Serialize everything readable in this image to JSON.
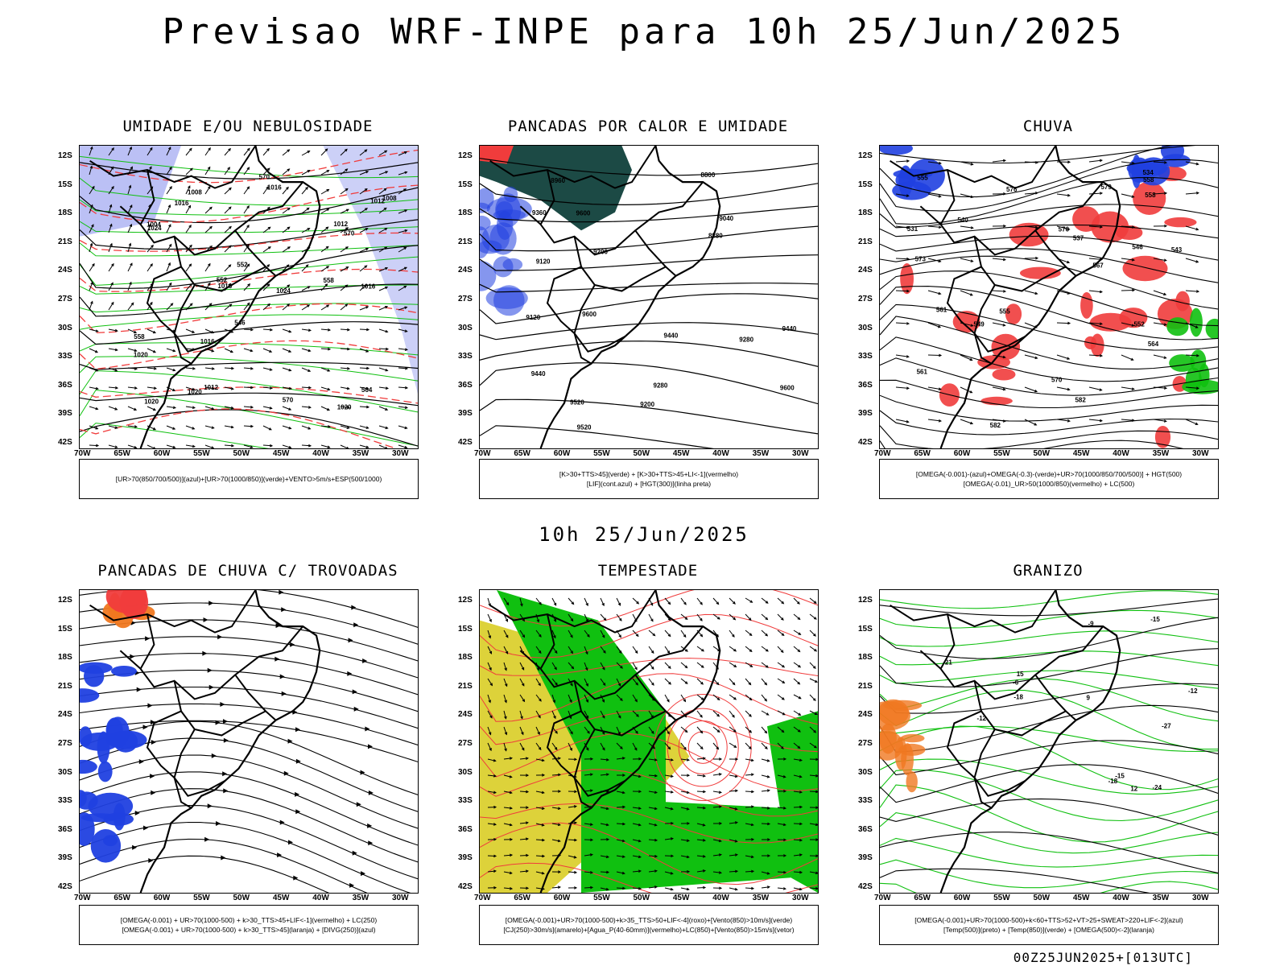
{
  "header": {
    "title": "Previsao WRF-INPE  para 10h 25/Jun/2025"
  },
  "mid_label": "10h 25/Jun/2025",
  "footer": "00Z25JUN2025+[013UTC]",
  "axes": {
    "lat_labels": [
      "12S",
      "15S",
      "18S",
      "21S",
      "24S",
      "27S",
      "30S",
      "33S",
      "36S",
      "39S",
      "42S"
    ],
    "lon_labels": [
      "70W",
      "65W",
      "60W",
      "55W",
      "50W",
      "45W",
      "40W",
      "35W",
      "30W"
    ]
  },
  "colors": {
    "humidity_blue": "#aab0f2",
    "rain_red": "#f03c3c",
    "green_field": "#10c010",
    "dark_teal": "#1c4a45",
    "yellow": "#ddd23a",
    "orange": "#f07820",
    "blue": "#2040e0"
  },
  "panels": [
    {
      "title": "UMIDADE E/OU NEBULOSIDADE",
      "legend": [
        "[UR>70(850/700/500)](azul)+[UR>70(1000/850)](verde)+VENTO>5m/s+ESP(500/1000)"
      ],
      "labels": [
        "1016",
        "1016",
        "1016",
        "1020",
        "1020",
        "1024",
        "1024",
        "1020",
        "1016",
        "1012",
        "1012",
        "1008",
        "1004",
        "1008",
        "1012",
        "1016",
        "1020",
        "570",
        "570",
        "570",
        "558",
        "552",
        "558",
        "552",
        "546",
        "564"
      ]
    },
    {
      "title": "PANCADAS POR CALOR E UMIDADE",
      "legend": [
        "[K>30+TTS>45](verde) + [K>30+TTS>45+LI<-1](vermelho)",
        "[LIF](cont.azul) + [HGT(300)](linha preta)"
      ],
      "labels": [
        "9600",
        "9600",
        "9600",
        "9520",
        "9520",
        "9440",
        "9440",
        "9440",
        "9360",
        "9280",
        "9280",
        "9200",
        "9200",
        "9120",
        "9120",
        "9040",
        "8960",
        "8880",
        "8800"
      ]
    },
    {
      "title": "CHUVA",
      "legend": [
        "[OMEGA(-0.001)-(azul)+OMEGA(-0.3)-(verde)+UR>70(1000/850/700/500)] + HGT(500)",
        "[OMEGA(-0.01)_UR>50(1000/850)(vermelho) + LC(500)"
      ],
      "labels": [
        "582",
        "582",
        "576",
        "579",
        "576",
        "573",
        "570",
        "567",
        "564",
        "561",
        "558",
        "555",
        "552",
        "549",
        "546",
        "543",
        "540",
        "537",
        "534",
        "531",
        "561",
        "558",
        "555"
      ]
    },
    {
      "title": "PANCADAS DE CHUVA C/ TROVOADAS",
      "legend": [
        "[OMEGA(-0.001) + UR>70(1000-500) + k>30_TTS>45+LIF<-1](vermelho) + LC(250)",
        "[OMEGA(-0.001) + UR>70(1000-500) + k>30_TTS>45](laranja) + [DIVG(250)](azul)"
      ],
      "labels": []
    },
    {
      "title": "TEMPESTADE",
      "legend": [
        "[OMEGA(-0.001)+UR>70(1000-500)+k>35_TTS>50+LIF<-4](roxo)+[Vento(850)>10m/s](verde)",
        "[CJ(250)>30m/s](amarelo)+[Agua_P(40-60mm)](vermelho)+LC(850)+[Vento(850)>15m/s](vetor)"
      ],
      "labels": []
    },
    {
      "title": "GRANIZO",
      "legend": [
        "[OMEGA(-0.001)+UR>70(1000-500)+k<60+TTS>52+VT>25+SWEAT>220+LIF<-2](azul)",
        "[Temp(500)](preto) + [Temp(850)](verde) + [OMEGA(500)<-2](laranja)"
      ],
      "labels": [
        "-6",
        "-9",
        "-12",
        "-12",
        "-15",
        "-15",
        "-18",
        "-18",
        "-21",
        "-24",
        "-27",
        "15",
        "12",
        "9"
      ]
    }
  ]
}
